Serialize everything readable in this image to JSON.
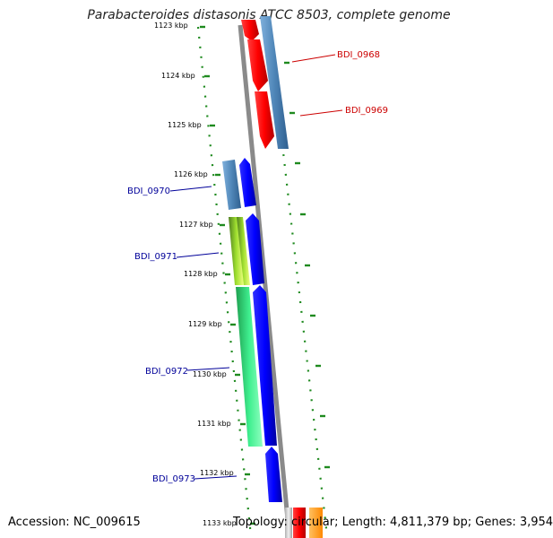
{
  "title": "Parabacteroides distasonis ATCC 8503, complete genome",
  "accession": "Accession: NC_009615",
  "topology": "Topology: circular; Length: 4,811,379 bp; Genes: 3,954",
  "ticks": [
    "1123 kbp",
    "1124 kbp",
    "1125 kbp",
    "1126 kbp",
    "1127 kbp",
    "1128 kbp",
    "1129 kbp",
    "1130 kbp",
    "1131 kbp",
    "1132 kbp",
    "1133 kbp"
  ],
  "gene_labels": [
    {
      "text": "BDI_0968",
      "color": "#cc0000"
    },
    {
      "text": "BDI_0969",
      "color": "#cc0000"
    },
    {
      "text": "BDI_0970",
      "color": "#000099"
    },
    {
      "text": "BDI_0971",
      "color": "#000099"
    },
    {
      "text": "BDI_0972",
      "color": "#000099"
    },
    {
      "text": "BDI_0973",
      "color": "#000099"
    }
  ],
  "colors": {
    "backbone": "#8a8a8a",
    "dots": "#1f8a1f",
    "forward_gene": "#ff0000",
    "reverse_gene": "#0000ff",
    "steel_gene": "#4f86b8",
    "green_gene": "#3fcf6f",
    "lime_gene": "#8fcf2f",
    "orange_gene": "#ff9900"
  }
}
